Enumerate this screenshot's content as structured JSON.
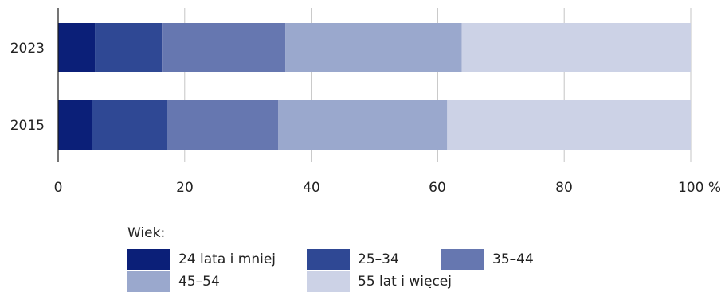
{
  "chart_data": {
    "type": "bar",
    "orientation": "horizontal",
    "stacked": true,
    "categories": [
      "2023",
      "2015"
    ],
    "series": [
      {
        "name": "24 lata i mniej",
        "color": "#0b1f78",
        "values": [
          5.8,
          5.3
        ]
      },
      {
        "name": "25–34",
        "color": "#2f4894",
        "values": [
          10.6,
          12.0
        ]
      },
      {
        "name": "35–44",
        "color": "#6677b0",
        "values": [
          19.5,
          17.5
        ]
      },
      {
        "name": "45–54",
        "color": "#9aa8cd",
        "values": [
          27.9,
          26.7
        ]
      },
      {
        "name": "55 lat i więcej",
        "color": "#ccd2e6",
        "values": [
          36.2,
          38.5
        ]
      }
    ],
    "xticks": [
      "0",
      "20",
      "40",
      "60",
      "80",
      "100 %"
    ],
    "xlim": [
      0,
      100
    ],
    "grid": "vertical",
    "legend_title": "Wiek:",
    "legend_position": "bottom"
  }
}
